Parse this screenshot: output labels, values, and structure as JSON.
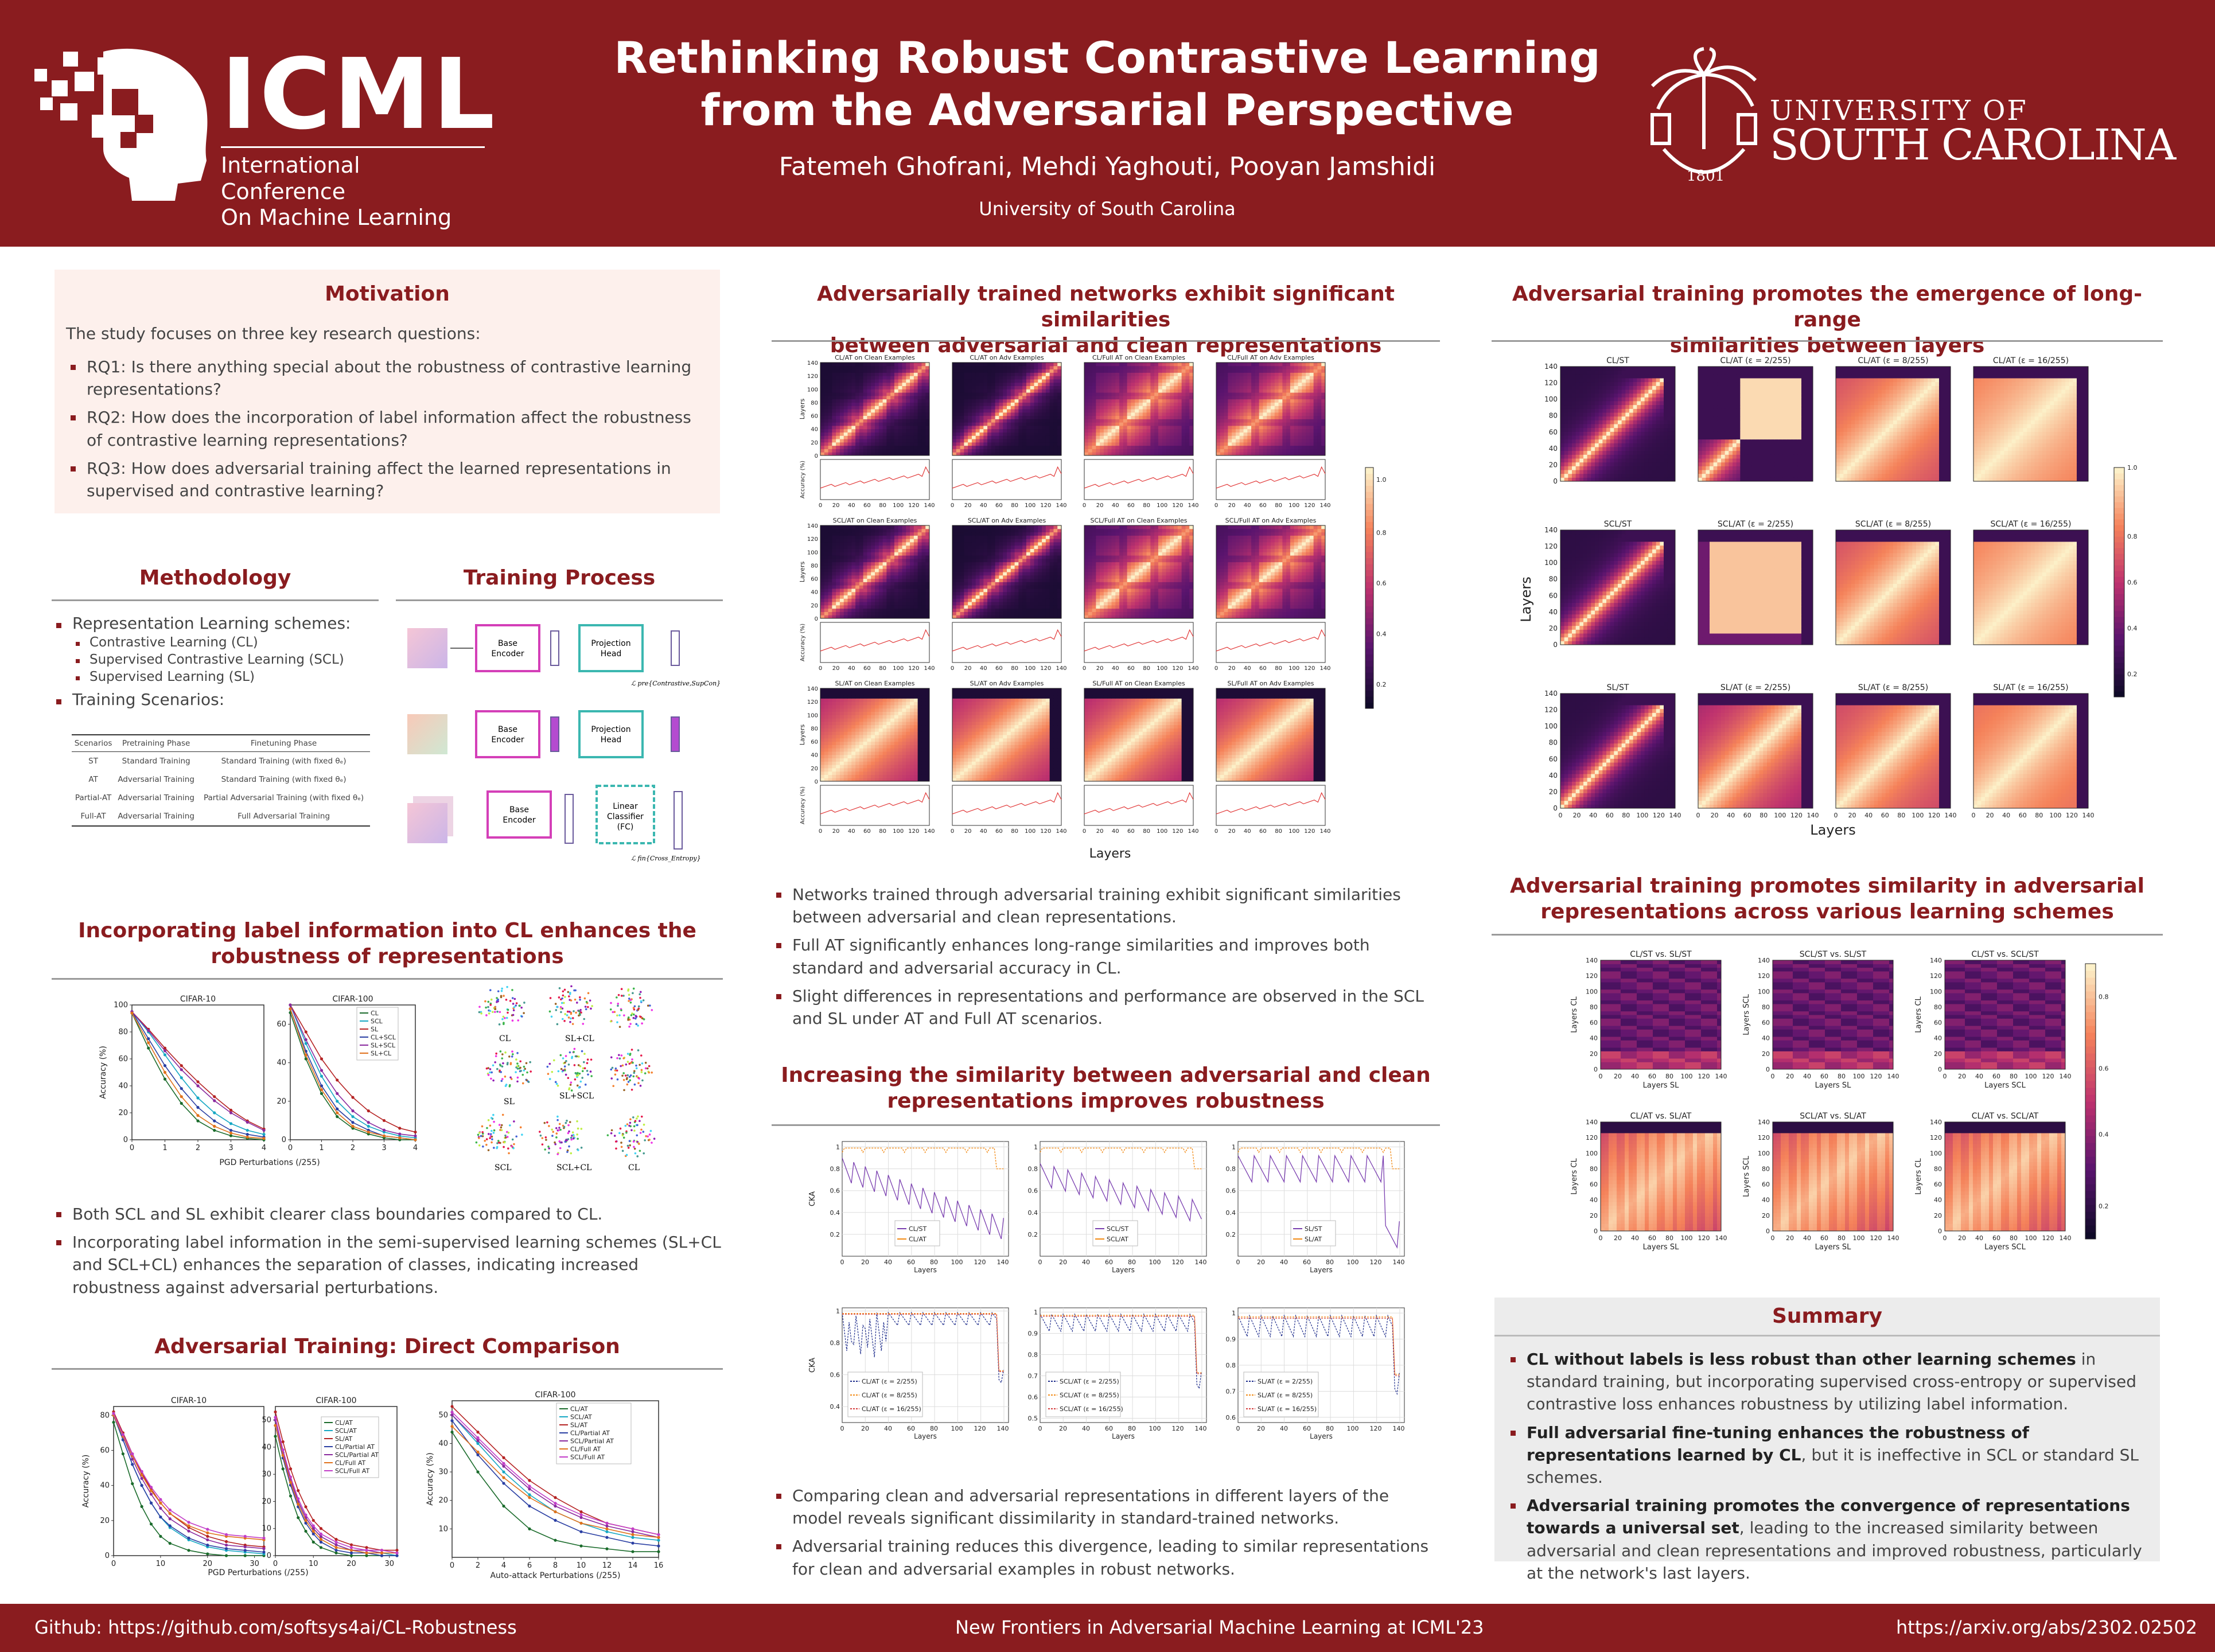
{
  "header": {
    "logo_text": "ICML",
    "logo_sub_line1": "International Conference",
    "logo_sub_line2": "On Machine Learning",
    "title_line1": "Rethinking Robust Contrastive Learning",
    "title_line2": "from the Adversarial Perspective",
    "authors": "Fatemeh Ghofrani, Mehdi Yaghouti, Pooyan Jamshidi",
    "affiliation": "University of South Carolina",
    "usc_line1": "UNIVERSITY OF",
    "usc_line2": "SOUTH CAROLINA",
    "usc_seal_year": "1801"
  },
  "colors": {
    "maroon": "#8a1c1f",
    "motivation_bg": "#fdf0ec",
    "summary_bg": "#ececec"
  },
  "motivation": {
    "title": "Motivation",
    "intro": "The study focuses on three key research questions:",
    "items": [
      {
        "label": "RQ1:",
        "text": "Is there anything special about the robustness of contrastive learning representations?"
      },
      {
        "label": "RQ2:",
        "text": "How does the incorporation of label information affect the robustness of contrastive learning representations?"
      },
      {
        "label": "RQ3:",
        "text": "How does adversarial training affect the learned representations in supervised and contrastive learning?"
      }
    ]
  },
  "methodology": {
    "title": "Methodology",
    "schemes_label": "Representation Learning schemes:",
    "schemes": [
      "Contrastive Learning (CL)",
      "Supervised Contrastive Learning (SCL)",
      "Supervised Learning (SL)"
    ],
    "scenarios_label": "Training Scenarios:",
    "table": {
      "headers": [
        "Scenarios",
        "Pretraining Phase",
        "Finetuning Phase"
      ],
      "rows": [
        [
          "ST",
          "Standard Training",
          "Standard Training (with fixed θₑ)"
        ],
        [
          "AT",
          "Adversarial Training",
          "Standard Training (with fixed θₑ)"
        ],
        [
          "Partial-AT",
          "Adversarial Training",
          "Partial Adversarial Training (with fixed θₑ)"
        ],
        [
          "Full-AT",
          "Adversarial Training",
          "Full Adversarial Training"
        ]
      ]
    }
  },
  "training_process": {
    "title": "Training Process",
    "base_encoder": "Base Encoder",
    "projection_head": "Projection Head",
    "linear_classifier": "Linear Classifier (FC)",
    "loss1": "ℒ pre{Contrastive,SupCon}",
    "loss2": "ℒ fin{Cross_Entropy}"
  },
  "label_info": {
    "title_line1": "Incorporating label information into CL enhances the",
    "title_line2": "robustness of representations",
    "plot1_title": "CIFAR-10",
    "plot2_title": "CIFAR-100",
    "ylabel": "Accuracy (%)",
    "xlabel": "PGD Perturbations (/255)",
    "legend": [
      "CL",
      "SCL",
      "SL",
      "CL+SCL",
      "SL+SCL",
      "SL+CL"
    ],
    "tsne_labels": [
      "CL",
      "SL+CL",
      "SL",
      "SL+SCL",
      "SCL",
      "SCL+CL",
      "CL"
    ],
    "bullets": [
      "Both SCL and SL exhibit clearer class boundaries compared to CL.",
      "Incorporating label information in the semi-supervised learning schemes (SL+CL and SCL+CL) enhances the separation of classes, indicating increased robustness against adversarial perturbations."
    ]
  },
  "adv_direct": {
    "title": "Adversarial Training: Direct Comparison",
    "plot1_title": "CIFAR-10",
    "plot2_title": "CIFAR-100",
    "plot3_title": "CIFAR-100",
    "ylabel": "Accuracy (%)",
    "xlabel1": "PGD Perturbations (/255)",
    "xlabel2": "Auto-attack Perturbations (/255)",
    "legend1": [
      "CL/AT",
      "SCL/AT",
      "SL/AT",
      "CL/Partial AT",
      "SCL/Partial AT",
      "CL/Full AT",
      "SCL/Full AT"
    ],
    "legend2": [
      "CL/AT",
      "SCL/AT",
      "SL/AT",
      "CL/Partial AT",
      "SCL/Partial AT",
      "CL/Full AT",
      "SCL/Full AT"
    ]
  },
  "middle_top": {
    "title_line1": "Adversarially trained networks exhibit significant similarities",
    "title_line2": "between adversarial and clean representations",
    "col_titles": [
      [
        "CL/AT on Clean Examples",
        "CL/AT on Adv Examples",
        "CL/Full AT on Clean Examples",
        "CL/Full AT on Adv Examples"
      ],
      [
        "SCL/AT on Clean Examples",
        "SCL/AT on Adv Examples",
        "SCL/Full AT on Clean Examples",
        "SCL/Full AT on Adv Examples"
      ],
      [
        "SL/AT on Clean Examples",
        "SL/AT on Adv Examples",
        "SL/Full AT on Clean Examples",
        "SL/Full AT on Adv Examples"
      ]
    ],
    "ylabel_layers": "Layers",
    "ylabel_acc": "Accuracy (%)",
    "xlabel": "Layers",
    "bullets": [
      "Networks trained through adversarial training exhibit significant similarities between adversarial and clean representations.",
      "Full AT significantly enhances long-range similarities and improves both standard and adversarial accuracy in CL.",
      "Slight differences in representations and performance are observed in the SCL and SL under AT and Full AT scenarios."
    ]
  },
  "middle_bottom": {
    "title_line1": "Increasing the similarity between adversarial and clean",
    "title_line2": "representations improves robustness",
    "ylabel": "CKA",
    "xlabel": "Layers",
    "legends_top": [
      [
        "CL/ST",
        "CL/AT"
      ],
      [
        "SCL/ST",
        "SCL/AT"
      ],
      [
        "SL/ST",
        "SL/AT"
      ]
    ],
    "legends_bottom": [
      [
        "CL/AT (ε = 2/255)",
        "CL/AT (ε = 8/255)",
        "CL/AT (ε = 16/255)"
      ],
      [
        "SCL/AT (ε = 2/255)",
        "SCL/AT (ε = 8/255)",
        "SCL/AT (ε = 16/255)"
      ],
      [
        "SL/AT (ε = 2/255)",
        "SL/AT (ε = 8/255)",
        "SL/AT (ε = 16/255)"
      ]
    ],
    "bullets": [
      "Comparing clean and adversarial representations in different layers of the model reveals significant dissimilarity in standard-trained networks.",
      "Adversarial training reduces this divergence, leading to similar representations for clean and adversarial examples in robust networks."
    ]
  },
  "right_top": {
    "title_line1": "Adversarial training promotes the emergence of long-range",
    "title_line2": "similarities between layers",
    "titles": [
      [
        "CL/ST",
        "CL/AT (ε = 2/255)",
        "CL/AT (ε = 8/255)",
        "CL/AT (ε = 16/255)"
      ],
      [
        "SCL/ST",
        "SCL/AT (ε = 2/255)",
        "SCL/AT (ε = 8/255)",
        "SCL/AT (ε = 16/255)"
      ],
      [
        "SL/ST",
        "SL/AT (ε = 2/255)",
        "SL/AT (ε = 8/255)",
        "SL/AT (ε = 16/255)"
      ]
    ],
    "ylabel": "Layers",
    "xlabel": "Layers"
  },
  "right_mid": {
    "title_line1": "Adversarial training promotes similarity in adversarial",
    "title_line2": "representations across various learning schemes",
    "titles": [
      [
        "CL/ST vs. SL/ST",
        "SCL/ST vs. SL/ST",
        "CL/ST vs. SCL/ST"
      ],
      [
        "CL/AT vs. SL/AT",
        "SCL/AT vs. SL/AT",
        "CL/AT vs. SCL/AT"
      ]
    ],
    "ylabels": [
      "Layers CL",
      "Layers SCL",
      "Layers CL"
    ],
    "xlabels": [
      "Layers SL",
      "Layers SL",
      "Layers SCL"
    ]
  },
  "summary": {
    "title": "Summary",
    "items": [
      {
        "bold": "CL without labels is less robust than other learning schemes",
        "rest": " in standard training, but incorporating supervised cross-entropy or supervised contrastive loss enhances robustness by utilizing label information."
      },
      {
        "bold": "Full adversarial fine-tuning enhances the robustness of representations learned by CL",
        "rest": ", but it is ineffective in SCL or standard SL schemes."
      },
      {
        "bold": "Adversarial training promotes the convergence of representations towards a universal set",
        "rest": ", leading to the increased similarity between adversarial and clean representations and improved robustness, particularly at the network's last layers."
      }
    ]
  },
  "footer": {
    "github": "Github: https://github.com/softsys4ai/CL-Robustness",
    "workshop": "New Frontiers in Adversarial Machine Learning at ICML'23",
    "arxiv": "https://arxiv.org/abs/2302.02502"
  },
  "chart_data": [
    {
      "type": "line",
      "title": "CIFAR-10",
      "xlabel": "PGD Perturbations (/255)",
      "ylabel": "Accuracy (%)",
      "x": [
        0,
        0.5,
        1,
        1.5,
        2,
        2.5,
        3,
        3.5,
        4
      ],
      "xlim": [
        0,
        4
      ],
      "ylim": [
        0,
        100
      ],
      "series": [
        {
          "name": "CL",
          "values": [
            94,
            68,
            45,
            27,
            14,
            7,
            3,
            1,
            0
          ]
        },
        {
          "name": "SCL",
          "values": [
            95,
            80,
            63,
            46,
            31,
            20,
            12,
            7,
            4
          ]
        },
        {
          "name": "SL",
          "values": [
            95,
            82,
            68,
            55,
            43,
            32,
            22,
            14,
            8
          ]
        },
        {
          "name": "CL+SCL",
          "values": [
            95,
            75,
            55,
            38,
            24,
            14,
            7,
            4,
            2
          ]
        },
        {
          "name": "SL+SCL",
          "values": [
            95,
            81,
            66,
            52,
            40,
            29,
            20,
            13,
            7
          ]
        },
        {
          "name": "SL+CL",
          "values": [
            94,
            72,
            50,
            32,
            18,
            10,
            5,
            2,
            1
          ]
        }
      ]
    },
    {
      "type": "line",
      "title": "CIFAR-100",
      "xlabel": "PGD Perturbations (/255)",
      "ylabel": "Accuracy (%)",
      "x": [
        0,
        0.5,
        1,
        1.5,
        2,
        2.5,
        3,
        3.5,
        4
      ],
      "xlim": [
        0,
        4
      ],
      "ylim": [
        0,
        70
      ],
      "series": [
        {
          "name": "CL",
          "values": [
            66,
            42,
            24,
            12,
            6,
            3,
            1,
            0,
            0
          ]
        },
        {
          "name": "SCL",
          "values": [
            70,
            50,
            33,
            20,
            12,
            7,
            4,
            2,
            1
          ]
        },
        {
          "name": "SL",
          "values": [
            70,
            56,
            42,
            31,
            22,
            15,
            10,
            6,
            4
          ]
        },
        {
          "name": "CL+SCL",
          "values": [
            68,
            46,
            28,
            16,
            9,
            5,
            2,
            1,
            0
          ]
        },
        {
          "name": "SL+SCL",
          "values": [
            70,
            52,
            36,
            24,
            15,
            9,
            5,
            3,
            2
          ]
        },
        {
          "name": "SL+CL",
          "values": [
            68,
            44,
            26,
            14,
            7,
            4,
            2,
            1,
            0
          ]
        }
      ]
    },
    {
      "type": "line",
      "title": "CIFAR-10",
      "xlabel": "PGD Perturbations (/255)",
      "ylabel": "Accuracy (%)",
      "x": [
        0,
        2,
        4,
        6,
        8,
        10,
        12,
        16,
        20,
        24,
        28,
        32
      ],
      "xlim": [
        0,
        32
      ],
      "ylim": [
        0,
        85
      ],
      "series": [
        {
          "name": "CL/AT",
          "values": [
            76,
            58,
            41,
            28,
            18,
            11,
            7,
            3,
            1,
            0,
            0,
            0
          ]
        },
        {
          "name": "SCL/AT",
          "values": [
            80,
            66,
            52,
            40,
            30,
            22,
            16,
            9,
            5,
            3,
            2,
            1
          ]
        },
        {
          "name": "SL/AT",
          "values": [
            82,
            70,
            58,
            47,
            38,
            30,
            24,
            16,
            11,
            8,
            6,
            5
          ]
        },
        {
          "name": "CL/Partial AT",
          "values": [
            80,
            66,
            52,
            40,
            30,
            22,
            17,
            10,
            6,
            4,
            3,
            2
          ]
        },
        {
          "name": "SCL/Partial AT",
          "values": [
            81,
            68,
            55,
            44,
            35,
            27,
            21,
            14,
            9,
            6,
            5,
            4
          ]
        },
        {
          "name": "CL/Full AT",
          "values": [
            80,
            68,
            57,
            46,
            37,
            30,
            24,
            17,
            13,
            11,
            10,
            9
          ]
        },
        {
          "name": "SCL/Full AT",
          "values": [
            81,
            69,
            58,
            48,
            39,
            32,
            26,
            19,
            15,
            12,
            11,
            10
          ]
        }
      ]
    },
    {
      "type": "line",
      "title": "CIFAR-100",
      "xlabel": "PGD Perturbations (/255)",
      "ylabel": "Accuracy (%)",
      "x": [
        0,
        2,
        4,
        6,
        8,
        10,
        12,
        16,
        20,
        24,
        28,
        32
      ],
      "xlim": [
        0,
        32
      ],
      "ylim": [
        0,
        55
      ],
      "series": [
        {
          "name": "CL/AT",
          "values": [
            44,
            32,
            22,
            14,
            9,
            5,
            3,
            1,
            0,
            0,
            0,
            0
          ]
        },
        {
          "name": "SCL/AT",
          "values": [
            50,
            38,
            28,
            20,
            14,
            10,
            7,
            4,
            2,
            1,
            1,
            0
          ]
        },
        {
          "name": "SL/AT",
          "values": [
            53,
            42,
            32,
            24,
            18,
            13,
            10,
            6,
            4,
            3,
            2,
            2
          ]
        },
        {
          "name": "CL/Partial AT",
          "values": [
            48,
            36,
            26,
            18,
            12,
            8,
            5,
            2,
            1,
            1,
            0,
            0
          ]
        },
        {
          "name": "SCL/Partial AT",
          "values": [
            50,
            38,
            28,
            20,
            14,
            10,
            7,
            4,
            2,
            2,
            1,
            1
          ]
        },
        {
          "name": "CL/Full AT",
          "values": [
            48,
            37,
            27,
            19,
            13,
            9,
            6,
            3,
            2,
            1,
            1,
            1
          ]
        },
        {
          "name": "SCL/Full AT",
          "values": [
            51,
            39,
            29,
            21,
            15,
            11,
            8,
            5,
            3,
            2,
            2,
            1
          ]
        }
      ]
    },
    {
      "type": "line",
      "title": "CIFAR-100",
      "xlabel": "Auto-attack Perturbations (/255)",
      "ylabel": "Accuracy (%)",
      "x": [
        0,
        2,
        4,
        6,
        8,
        10,
        12,
        14,
        16
      ],
      "xlim": [
        0,
        16
      ],
      "ylim": [
        0,
        55
      ],
      "series": [
        {
          "name": "CL/AT",
          "values": [
            44,
            30,
            18,
            10,
            6,
            4,
            3,
            2,
            2
          ]
        },
        {
          "name": "SCL/AT",
          "values": [
            50,
            40,
            30,
            22,
            16,
            12,
            9,
            7,
            6
          ]
        },
        {
          "name": "SL/AT",
          "values": [
            53,
            44,
            35,
            27,
            21,
            16,
            12,
            10,
            8
          ]
        },
        {
          "name": "CL/Partial AT",
          "values": [
            48,
            36,
            26,
            18,
            13,
            9,
            7,
            5,
            4
          ]
        },
        {
          "name": "SCL/Partial AT",
          "values": [
            50,
            41,
            32,
            24,
            18,
            14,
            11,
            9,
            7
          ]
        },
        {
          "name": "CL/Full AT",
          "values": [
            46,
            37,
            28,
            21,
            16,
            12,
            10,
            8,
            7
          ]
        },
        {
          "name": "SCL/Full AT",
          "values": [
            51,
            42,
            33,
            25,
            19,
            15,
            12,
            10,
            8
          ]
        }
      ]
    }
  ]
}
